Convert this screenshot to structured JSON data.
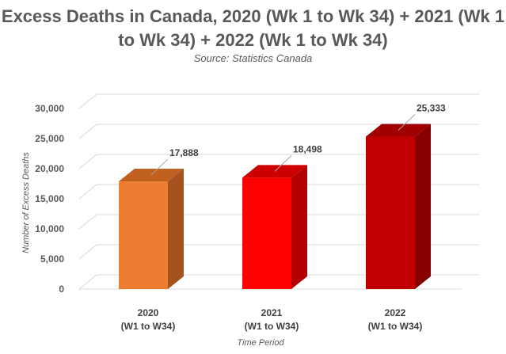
{
  "chart_data": {
    "type": "bar",
    "title": "Excess Deaths in Canada, 2020 (Wk 1 to Wk 34) + 2021 (Wk 1 to Wk 34) + 2022 (Wk 1 to Wk 34)",
    "subtitle": "Source: Statistics Canada",
    "xlabel": "Time Period",
    "ylabel": "Number of Excess Deaths",
    "categories": [
      [
        "2020",
        "(W1 to W34)"
      ],
      [
        "2021",
        "(W1 to W34)"
      ],
      [
        "2022",
        "(W1 to W34)"
      ]
    ],
    "values": [
      17888,
      18498,
      25333
    ],
    "value_labels": [
      "17,888",
      "18,498",
      "25,333"
    ],
    "ylim": [
      0,
      30000
    ],
    "yticks": [
      0,
      5000,
      10000,
      15000,
      20000,
      25000,
      30000
    ],
    "ytick_labels": [
      "0",
      "5,000",
      "10,000",
      "15,000",
      "20,000",
      "25,000",
      "30,000"
    ],
    "bar_colors": [
      {
        "front": "#ED7D31",
        "side": "#A5521E",
        "top": "#C0611F"
      },
      {
        "front": "#FF0000",
        "side": "#B30000",
        "top": "#CC0000"
      },
      {
        "front": "#C00000",
        "side": "#860000",
        "top": "#A00000"
      }
    ],
    "grid": true,
    "style": "3d-column"
  }
}
